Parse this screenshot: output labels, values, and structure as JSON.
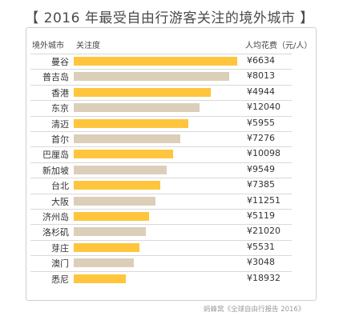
{
  "title": "【 2016 年最受自由行游客关注的境外城市 】",
  "headers": {
    "city": "境外城市",
    "attention": "关注度",
    "spending": "人均花费（元/人）"
  },
  "credit": "蚂蜂窝《全球自由行报告 2016》",
  "colors": {
    "highlight": "#FFC53D",
    "normal": "#DCCFB9"
  },
  "chart_data": {
    "type": "bar",
    "orientation": "horizontal",
    "title": "【 2016 年最受自由行游客关注的境外城市 】",
    "categories": [
      "曼谷",
      "普吉岛",
      "香港",
      "东京",
      "清迈",
      "首尔",
      "巴厘岛",
      "新加坡",
      "台北",
      "大阪",
      "济州岛",
      "洛杉矶",
      "芽庄",
      "澳门",
      "悉尼"
    ],
    "values": [
      100,
      95,
      84,
      77,
      70,
      65,
      61,
      57,
      53,
      50,
      46,
      44,
      40,
      37,
      32
    ],
    "spending": [
      "¥6634",
      "¥8013",
      "¥4944",
      "¥12040",
      "¥5955",
      "¥7276",
      "¥10098",
      "¥9549",
      "¥7385",
      "¥11251",
      "¥5119",
      "¥21020",
      "¥5531",
      "¥3048",
      "¥18932"
    ],
    "bar_color": [
      "highlight",
      "normal",
      "highlight",
      "normal",
      "highlight",
      "normal",
      "highlight",
      "normal",
      "highlight",
      "normal",
      "highlight",
      "normal",
      "highlight",
      "normal",
      "highlight"
    ],
    "xlabel": "关注度",
    "ylabel": "境外城市",
    "xlim": [
      0,
      100
    ],
    "grid": false,
    "legend": "none"
  }
}
